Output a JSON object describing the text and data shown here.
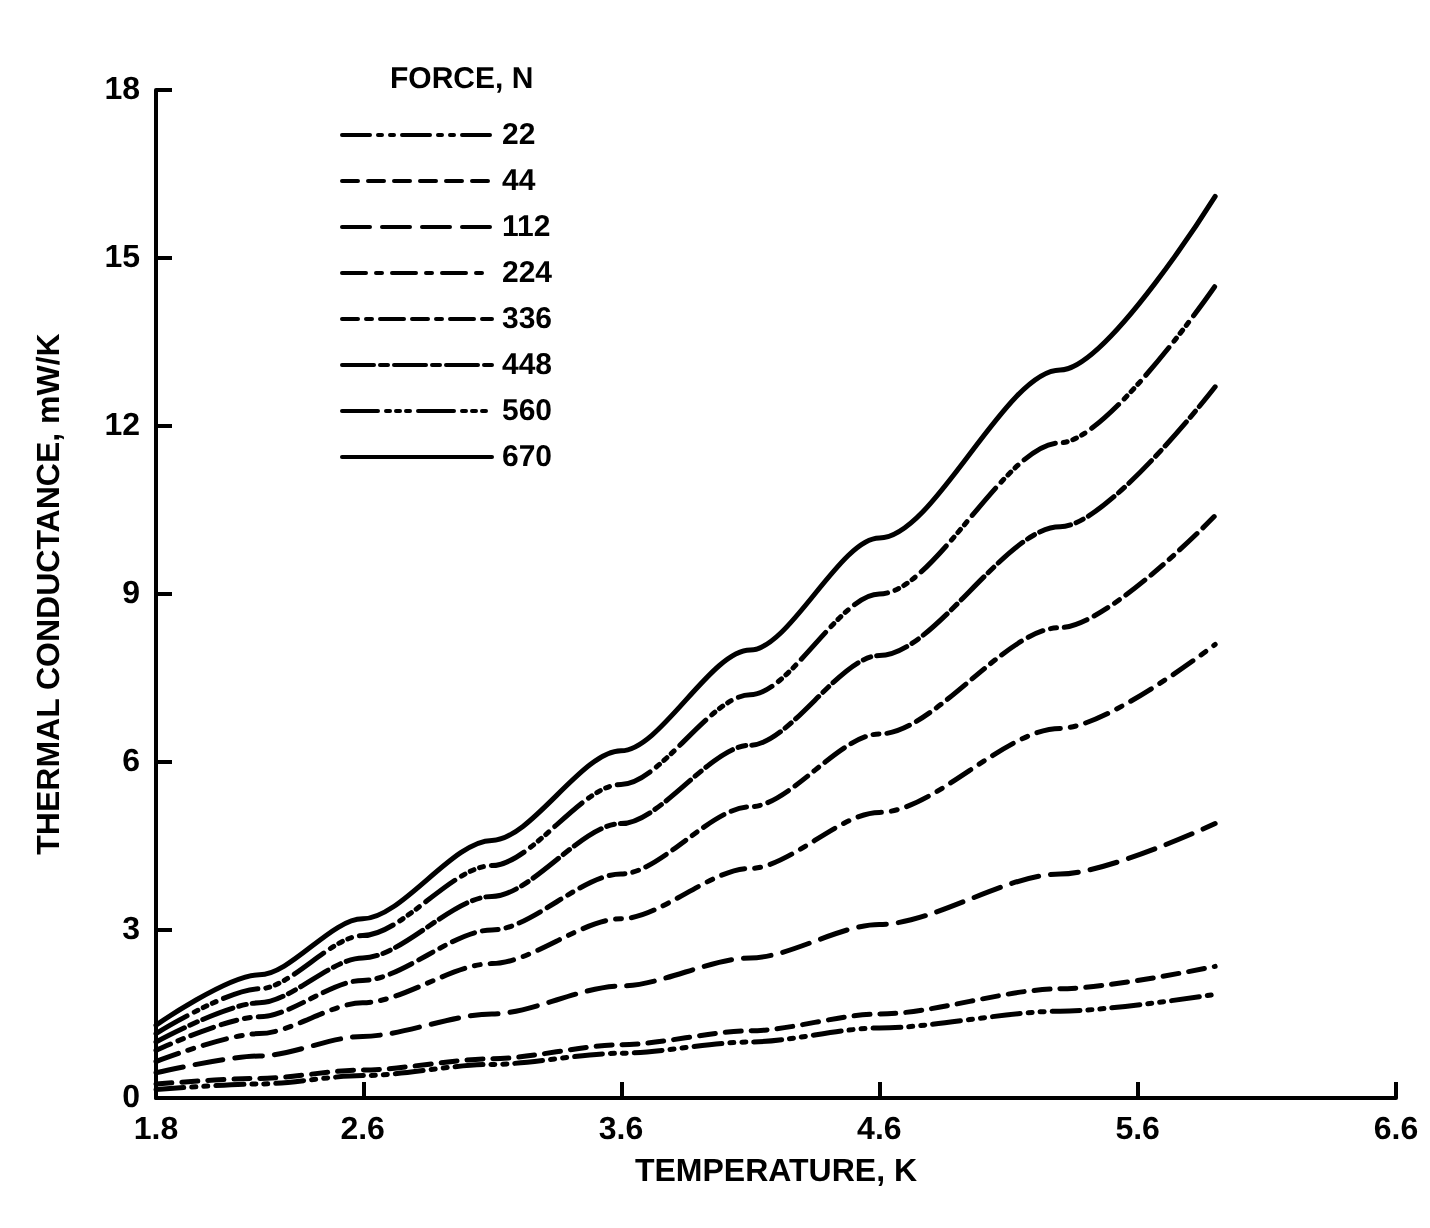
{
  "chart_data": {
    "type": "line",
    "xlabel": "TEMPERATURE, K",
    "ylabel": "THERMAL CONDUCTANCE, mW/K",
    "legend_title": "FORCE, N",
    "legend": "top left",
    "grid": false,
    "marker": "none",
    "xlim": [
      1.8,
      6.6
    ],
    "xticks": [
      1.8,
      2.6,
      3.6,
      4.6,
      5.6,
      6.6
    ],
    "ylim": [
      0,
      18
    ],
    "yticks": [
      0,
      3,
      6,
      9,
      12,
      15,
      18
    ],
    "x": [
      1.8,
      2.2,
      2.6,
      3.1,
      3.6,
      4.1,
      4.6,
      5.3,
      5.9
    ],
    "series": [
      {
        "name": "22",
        "color": "#000000",
        "line_style": "dashed",
        "values": [
          0.15,
          0.25,
          0.4,
          0.6,
          0.8,
          1.0,
          1.25,
          1.55,
          1.85
        ]
      },
      {
        "name": "44",
        "color": "#000000",
        "line_style": "dashed",
        "values": [
          0.25,
          0.35,
          0.5,
          0.7,
          0.95,
          1.2,
          1.5,
          1.95,
          2.35
        ]
      },
      {
        "name": "112",
        "color": "#000000",
        "line_style": "dashed",
        "values": [
          0.45,
          0.75,
          1.1,
          1.5,
          2.0,
          2.5,
          3.1,
          4.0,
          4.9
        ]
      },
      {
        "name": "224",
        "color": "#000000",
        "line_style": "dashed",
        "values": [
          0.65,
          1.15,
          1.7,
          2.4,
          3.2,
          4.1,
          5.1,
          6.6,
          8.1
        ]
      },
      {
        "name": "336",
        "color": "#000000",
        "line_style": "dashed",
        "values": [
          0.85,
          1.45,
          2.1,
          3.0,
          4.0,
          5.2,
          6.5,
          8.4,
          10.4
        ]
      },
      {
        "name": "448",
        "color": "#000000",
        "line_style": "dashed",
        "values": [
          1.0,
          1.7,
          2.5,
          3.6,
          4.9,
          6.3,
          7.9,
          10.2,
          12.7
        ]
      },
      {
        "name": "560",
        "color": "#000000",
        "line_style": "dashed",
        "values": [
          1.15,
          1.95,
          2.9,
          4.15,
          5.6,
          7.2,
          9.0,
          11.7,
          14.5
        ]
      },
      {
        "name": "670",
        "color": "#000000",
        "line_style": "solid",
        "values": [
          1.3,
          2.2,
          3.2,
          4.6,
          6.2,
          8.0,
          10.0,
          13.0,
          16.1
        ]
      }
    ]
  }
}
